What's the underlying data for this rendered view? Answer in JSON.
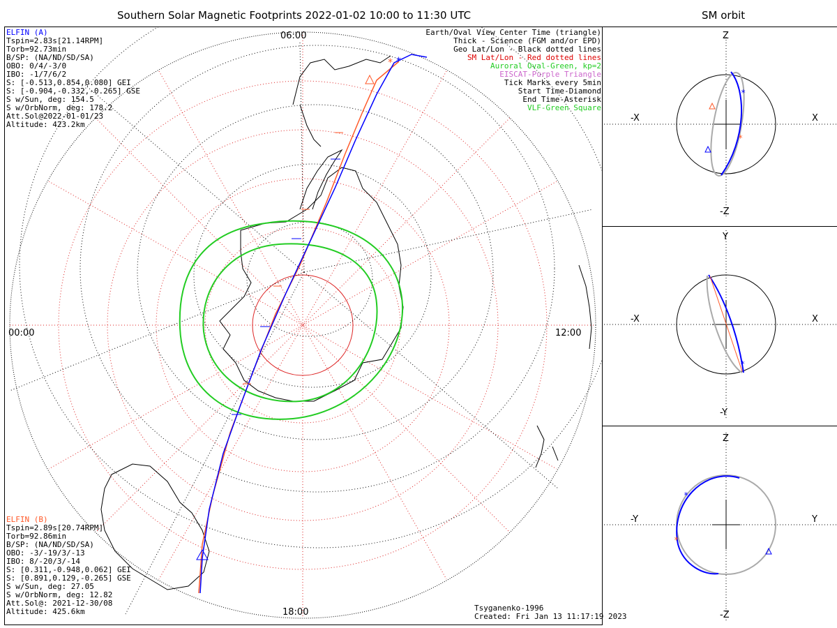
{
  "title": "Southern Solar Magnetic Footprints 2022-01-02 10:00 to 11:30 UTC",
  "orbit_title": "SM orbit",
  "map": {
    "times": {
      "top": "06:00",
      "left": "00:00",
      "right": "12:00",
      "bottom": "18:00"
    },
    "colors": {
      "elfin_a": "#0000ff",
      "elfin_b": "#ff5a2a",
      "oval": "#22cc22",
      "grid": "#dd2222",
      "geo": "#000000"
    }
  },
  "elfin_a": {
    "name": "ELFIN (A)",
    "lines": [
      "Tspin=2.83s[21.14RPM]",
      "Torb=92.73min",
      "B/SP: (NA/ND/SD/SA)",
      "OBO: 0/4/-3/0",
      "IBO: -1/7/6/2",
      "S: [-0.513,0.854,0.080] GEI",
      "S: [-0.904,-0.332,-0.265] GSE",
      "S w/Sun, deg: 154.5",
      "S w/OrbNorm, deg: 178.2",
      "Att.Sol@2022-01-01/23",
      "Altitude: 423.2km"
    ]
  },
  "elfin_b": {
    "name": "ELFIN (B)",
    "lines": [
      "Tspin=2.89s[20.74RPM]",
      "Torb=92.86min",
      "B/SP: (NA/ND/SD/SA)",
      "OBO: -3/-19/3/-13",
      "IBO: 8/-20/3/-14",
      "S: [0.311,-0.948,0.062] GEI",
      "S: [0.891,0.129,-0.265] GSE",
      "S w/Sun, deg: 27.05",
      "S w/OrbNorm, deg: 12.82",
      "Att.Sol@: 2021-12-30/08",
      "Altitude: 425.6km"
    ]
  },
  "legend": [
    {
      "text": "Earth/Oval View Center Time (triangle)",
      "color": "#000000"
    },
    {
      "text": "Thick - Science (FGM and/or EPD)",
      "color": "#000000"
    },
    {
      "text": "Geo Lat/Lon - Black dotted lines",
      "color": "#000000"
    },
    {
      "text": "SM Lat/Lon - Red dotted lines",
      "color": "#dd0000"
    },
    {
      "text": "Auroral Oval-Green, kp=2",
      "color": "#22cc22"
    },
    {
      "text": "EISCAT-Purple Triangle",
      "color": "#cc66cc"
    },
    {
      "text": "Tick Marks every 5min",
      "color": "#000000"
    },
    {
      "text": "Start Time-Diamond",
      "color": "#000000"
    },
    {
      "text": "End Time-Asterisk",
      "color": "#000000"
    },
    {
      "text": "VLF-Green Square",
      "color": "#22cc22"
    }
  ],
  "credits": {
    "model": "Tsyganenko-1996",
    "created": "Created: Fri Jan 13 11:17:19 2023"
  },
  "panels": [
    {
      "top": "Z",
      "bottom": "-Z",
      "left": "-X",
      "right": "X"
    },
    {
      "top": "Y",
      "bottom": "-Y",
      "left": "-X",
      "right": "X"
    },
    {
      "top": "Z",
      "bottom": "-Z",
      "left": "-Y",
      "right": "Y"
    }
  ]
}
